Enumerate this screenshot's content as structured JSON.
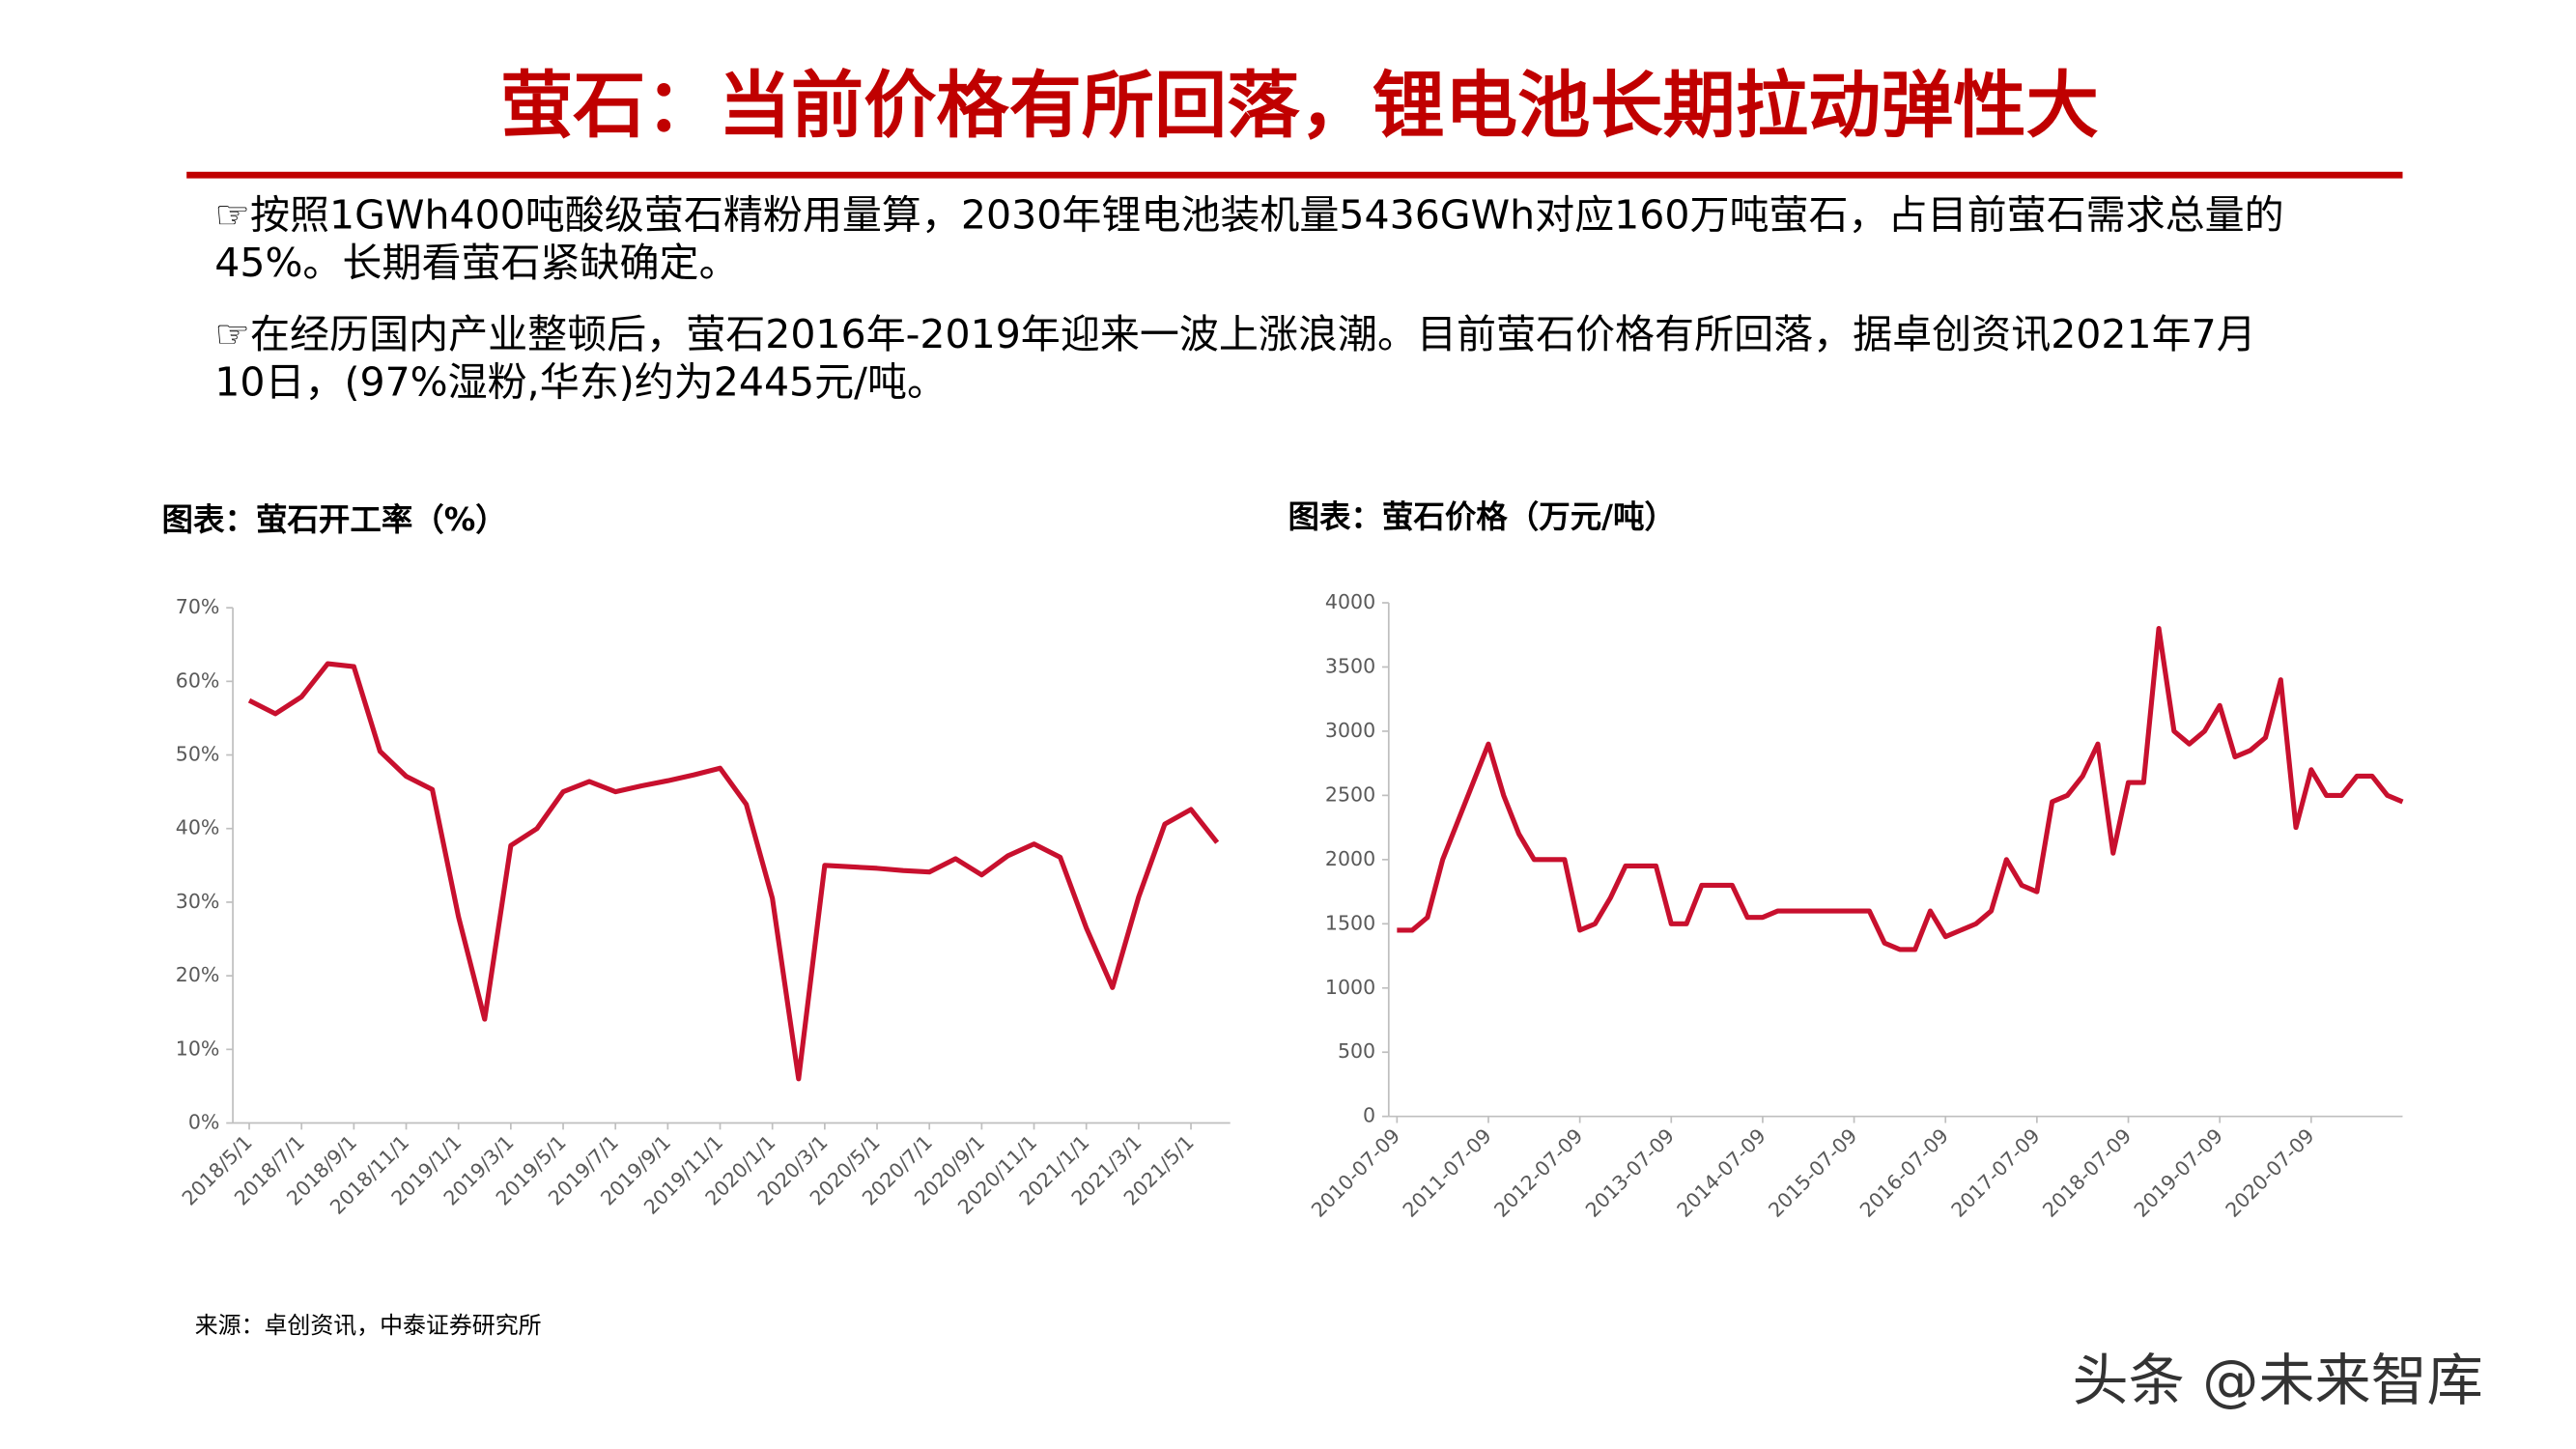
{
  "header": {
    "title": "萤石：当前价格有所回落，锂电池长期拉动弹性大"
  },
  "bullets": [
    [
      "☞按照1GWh400吨酸级萤石精粉用量算，2030年锂电池装机量5436GWh对应160万吨萤石，占目前萤石需求总量的",
      "45%。长期看萤石紧缺确定。"
    ],
    [
      "☞在经历国内产业整顿后，萤石2016年-2019年迎来一波上涨浪潮。目前萤石价格有所回落，据卓创资讯2021年7月",
      "10日，(97%湿粉,华东)约为2445元/吨。"
    ]
  ],
  "source": "来源：卓创资讯，中泰证券研究所",
  "watermark": "头条 @未来智库",
  "chart_data": [
    {
      "type": "line",
      "title": "图表：萤石开工率（%）",
      "color": "#c8102e",
      "categories": [
        "2018/5/1",
        null,
        "2018/7/1",
        null,
        "2018/9/1",
        null,
        "2018/11/1",
        null,
        "2019/1/1",
        null,
        "2019/3/1",
        null,
        "2019/5/1",
        null,
        "2019/7/1",
        null,
        "2019/9/1",
        null,
        "2019/11/1",
        null,
        "2020/1/1",
        null,
        "2020/3/1",
        null,
        "2020/5/1",
        null,
        "2020/7/1",
        null,
        "2020/9/1",
        null,
        "2020/11/1",
        null,
        "2021/1/1",
        null,
        "2021/3/1",
        null,
        "2021/5/1",
        null
      ],
      "values": [
        57.4,
        55.6,
        57.9,
        62.4,
        62.0,
        50.5,
        47.1,
        45.3,
        28,
        14.1,
        37.7,
        40,
        45,
        46.4,
        45,
        45.8,
        46.5,
        47.3,
        48.2,
        43.3,
        30.5,
        6,
        35,
        34.8,
        34.6,
        34.3,
        34.1,
        35.9,
        33.7,
        36.3,
        37.9,
        36.1,
        26.5,
        18.4,
        30.7,
        40.6,
        42.6,
        38.1
      ],
      "ylim": [
        0,
        70
      ],
      "yticks": [
        {
          "value": 0,
          "label": "0%"
        },
        {
          "value": 10,
          "label": "10%"
        },
        {
          "value": 20,
          "label": "20%"
        },
        {
          "value": 30,
          "label": "30%"
        },
        {
          "value": 40,
          "label": "40%"
        },
        {
          "value": 50,
          "label": "50%"
        },
        {
          "value": 60,
          "label": "60%"
        },
        {
          "value": 70,
          "label": "70%"
        }
      ]
    },
    {
      "type": "line",
      "title": "图表：萤石价格（万元/吨）",
      "color": "#c8102e",
      "categories": [
        "2010-07-09",
        null,
        null,
        null,
        null,
        null,
        "2011-07-09",
        null,
        null,
        null,
        null,
        null,
        "2012-07-09",
        null,
        null,
        null,
        null,
        null,
        "2013-07-09",
        null,
        null,
        null,
        null,
        null,
        "2014-07-09",
        null,
        null,
        null,
        null,
        null,
        "2015-07-09",
        null,
        null,
        null,
        null,
        null,
        "2016-07-09",
        null,
        null,
        null,
        null,
        null,
        "2017-07-09",
        null,
        null,
        null,
        null,
        null,
        "2018-07-09",
        null,
        null,
        null,
        null,
        null,
        "2019-07-09",
        null,
        null,
        null,
        null,
        null,
        "2020-07-09",
        null,
        null,
        null,
        null,
        null,
        null
      ],
      "values": [
        1450,
        1450,
        1550,
        2000,
        2300,
        2600,
        2900,
        2500,
        2200,
        2000,
        2000,
        2000,
        1450,
        1500,
        1700,
        1950,
        1950,
        1950,
        1500,
        1500,
        1800,
        1800,
        1800,
        1550,
        1550,
        1600,
        1600,
        1600,
        1600,
        1600,
        1600,
        1600,
        1350,
        1300,
        1300,
        1600,
        1400,
        1450,
        1500,
        1600,
        2000,
        1800,
        1750,
        2450,
        2500,
        2650,
        2900,
        2050,
        2600,
        2600,
        3800,
        3000,
        2900,
        3000,
        3200,
        2800,
        2850,
        2950,
        3400,
        2250,
        2700,
        2500,
        2500,
        2650,
        2650,
        2500,
        2450
      ],
      "ylim": [
        0,
        4000
      ],
      "yticks": [
        0,
        500,
        1000,
        1500,
        2000,
        2500,
        3000,
        3500,
        4000
      ]
    }
  ]
}
